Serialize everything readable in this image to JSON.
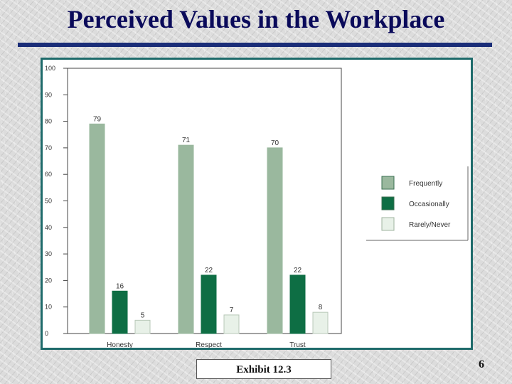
{
  "slide": {
    "title": "Perceived Values in the Workplace",
    "exhibit_label": "Exhibit 12.3",
    "page_number": "6"
  },
  "colors": {
    "title": "#0a0a5a",
    "rule": "#1a2d78",
    "frame_border": "#1f6b6b",
    "frequently": "#9ab89e",
    "occasionally": "#0e6e44",
    "rarely_never": "#e8f1e8"
  },
  "chart_data": {
    "type": "bar",
    "title": "",
    "xlabel": "",
    "ylabel": "",
    "ylim": [
      0,
      100
    ],
    "yticks": [
      "0",
      "10",
      "20",
      "30",
      "40",
      "50",
      "60",
      "70",
      "80",
      "90",
      "100"
    ],
    "categories": [
      "Honesty",
      "Respect",
      "Trust"
    ],
    "series": [
      {
        "name": "Frequently",
        "values": [
          79,
          71,
          70
        ],
        "color": "#9ab89e"
      },
      {
        "name": "Occasionally",
        "values": [
          16,
          22,
          22
        ],
        "color": "#0e6e44"
      },
      {
        "name": "Rarely/Never",
        "values": [
          5,
          7,
          8
        ],
        "color": "#e8f1e8"
      }
    ],
    "legend_position": "right",
    "grid": false
  }
}
